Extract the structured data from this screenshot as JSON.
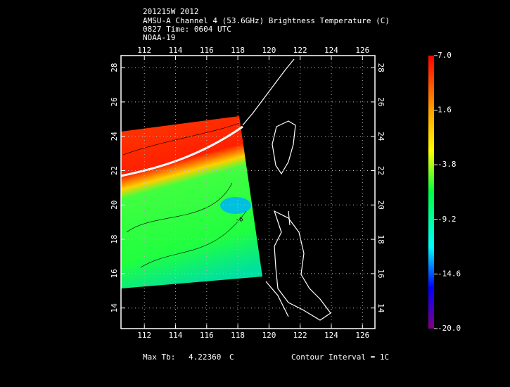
{
  "header": {
    "lines": [
      "201215W 2012",
      "AMSU-A Channel 4 (53.6GHz) Brightness Temperature (C)",
      "0827 Time: 0604 UTC",
      "NOAA-19"
    ]
  },
  "map": {
    "xlim": [
      110.5,
      126.8
    ],
    "ylim": [
      12.8,
      28.7
    ],
    "xticks": [
      112,
      114,
      116,
      118,
      120,
      122,
      124,
      126
    ],
    "yticks": [
      14,
      16,
      18,
      20,
      22,
      24,
      26,
      28
    ],
    "grid": true,
    "contour_labels": [
      "-6"
    ]
  },
  "colorbar": {
    "lim": [
      -20,
      7
    ],
    "ticks": [
      {
        "value": 7,
        "label": "7.0"
      },
      {
        "value": 1.6,
        "label": "1.6"
      },
      {
        "value": -3.8,
        "label": "-3.8"
      },
      {
        "value": -9.2,
        "label": "-9.2"
      },
      {
        "value": -14.6,
        "label": "-14.6"
      },
      {
        "value": -20,
        "label": "-20.0"
      }
    ]
  },
  "footer": {
    "max_label": "Max Tb:",
    "max_value": "4.22360",
    "max_unit": "C",
    "contour_interval": "Contour Interval = 1C"
  }
}
